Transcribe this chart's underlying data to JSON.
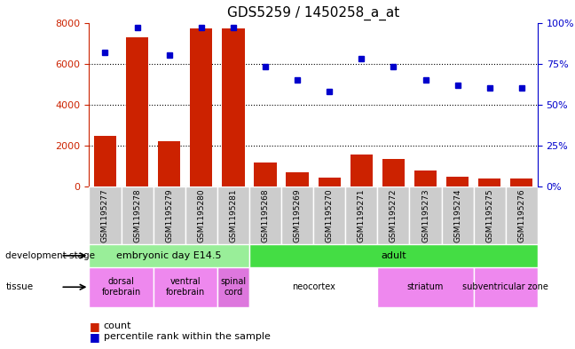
{
  "title": "GDS5259 / 1450258_a_at",
  "samples": [
    "GSM1195277",
    "GSM1195278",
    "GSM1195279",
    "GSM1195280",
    "GSM1195281",
    "GSM1195268",
    "GSM1195269",
    "GSM1195270",
    "GSM1195271",
    "GSM1195272",
    "GSM1195273",
    "GSM1195274",
    "GSM1195275",
    "GSM1195276"
  ],
  "counts": [
    2500,
    7300,
    2200,
    7700,
    7700,
    1200,
    700,
    450,
    1550,
    1350,
    800,
    500,
    400,
    380
  ],
  "percentiles": [
    82,
    97,
    80,
    97,
    97,
    73,
    65,
    58,
    78,
    73,
    65,
    62,
    60,
    60
  ],
  "ylim_left": [
    0,
    8000
  ],
  "ylim_right": [
    0,
    100
  ],
  "yticks_left": [
    0,
    2000,
    4000,
    6000,
    8000
  ],
  "yticks_right": [
    0,
    25,
    50,
    75,
    100
  ],
  "bar_color": "#cc2200",
  "dot_color": "#0000cc",
  "grid_dotted_levels": [
    2000,
    4000,
    6000
  ],
  "dev_stage_groups": [
    {
      "label": "embryonic day E14.5",
      "start": 0,
      "end": 5,
      "color": "#99ee99"
    },
    {
      "label": "adult",
      "start": 5,
      "end": 14,
      "color": "#44dd44"
    }
  ],
  "tissue_groups": [
    {
      "label": "dorsal\nforebrain",
      "start": 0,
      "end": 2,
      "color": "#ee88ee"
    },
    {
      "label": "ventral\nforebrain",
      "start": 2,
      "end": 4,
      "color": "#ee88ee"
    },
    {
      "label": "spinal\ncord",
      "start": 4,
      "end": 5,
      "color": "#dd77dd"
    },
    {
      "label": "neocortex",
      "start": 5,
      "end": 9,
      "color": "#ffffff"
    },
    {
      "label": "striatum",
      "start": 9,
      "end": 12,
      "color": "#ee88ee"
    },
    {
      "label": "subventricular zone",
      "start": 12,
      "end": 14,
      "color": "#ee88ee"
    }
  ],
  "legend_count_label": "count",
  "legend_pct_label": "percentile rank within the sample",
  "left_label_color": "#cc2200",
  "right_label_color": "#0000cc",
  "xtick_bg_color": "#cccccc",
  "xtick_border_color": "#ffffff",
  "fig_bg_color": "#ffffff"
}
